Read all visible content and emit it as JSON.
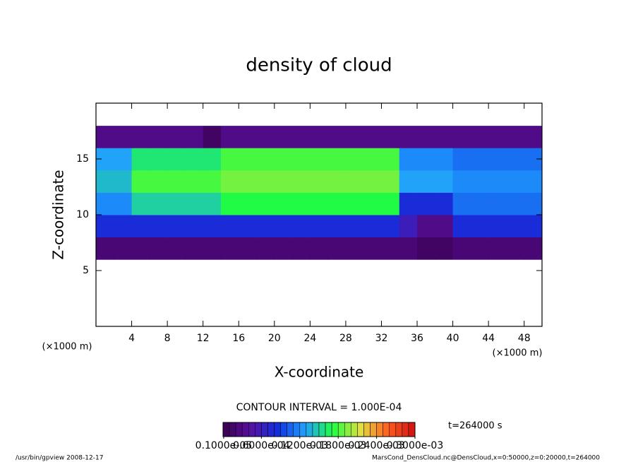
{
  "chart_data": {
    "type": "heatmap",
    "title": "density of cloud",
    "x_label": "X-coordinate",
    "y_label": "Z-coordinate",
    "x_unit": "(×1000 m)",
    "contour_interval": "CONTOUR INTERVAL = 1.000E-04",
    "time_label": "t=264000 s",
    "footer_left": "/usr/bin/gpview   2008-12-17",
    "footer_right": "MarsCond_DensCloud.nc@DensCloud,x=0:50000,z=0:20000,t=264000",
    "x": [
      1,
      3,
      5,
      7,
      9,
      11,
      13,
      15,
      17,
      19,
      21,
      23,
      25,
      27,
      29,
      31,
      33,
      35,
      37,
      39,
      41,
      43,
      45,
      47,
      49
    ],
    "y": [
      1,
      3,
      5,
      7,
      9,
      11,
      13,
      15,
      17,
      19
    ],
    "xlim": [
      0,
      50
    ],
    "ylim": [
      0,
      20
    ],
    "xticks": [
      4,
      8,
      12,
      16,
      20,
      24,
      28,
      32,
      36,
      40,
      44,
      48
    ],
    "yticks": [
      5,
      10,
      15
    ],
    "clim": [
      0,
      0.0003
    ],
    "colormap": [
      "#3a0050",
      "#5a10a0",
      "#1030e0",
      "#20a0ff",
      "#20ff40",
      "#e0e040",
      "#ff6020",
      "#d01010"
    ],
    "colorbar_ticks": [
      {
        "value": 1e-06,
        "label": "0.1000e-05"
      },
      {
        "value": 6e-05,
        "label": "0.6000e-04"
      },
      {
        "value": 0.00012,
        "label": "0.1200e-03"
      },
      {
        "value": 0.00018,
        "label": "0.1800e-03"
      },
      {
        "value": 0.00024,
        "label": "0.2400e-03"
      },
      {
        "value": 0.0003,
        "label": "0.3000e-03"
      }
    ],
    "values": [
      [
        0,
        0,
        0,
        0,
        0,
        0,
        0,
        0,
        0,
        0,
        0,
        0,
        0,
        0,
        0,
        0,
        0,
        0,
        0,
        0,
        0,
        0,
        0,
        0,
        0
      ],
      [
        0,
        0,
        0,
        0,
        0,
        0,
        0,
        0,
        0,
        0,
        0,
        0,
        0,
        0,
        0,
        0,
        0,
        0,
        0,
        0,
        0,
        0,
        0,
        0,
        0
      ],
      [
        0,
        0,
        0,
        0,
        0,
        0,
        0,
        0,
        0,
        0,
        0,
        0,
        0,
        0,
        0,
        0,
        0,
        0,
        0,
        0,
        0,
        0,
        0,
        0,
        0
      ],
      [
        2e-05,
        2e-05,
        2e-05,
        2e-05,
        2e-05,
        2e-05,
        2e-05,
        2e-05,
        2e-05,
        2e-05,
        2e-05,
        2e-05,
        2e-05,
        2e-05,
        2e-05,
        2e-05,
        2e-05,
        2e-05,
        1e-05,
        1e-05,
        2e-05,
        2e-05,
        2e-05,
        2e-05,
        2e-05
      ],
      [
        8e-05,
        8e-05,
        8e-05,
        8e-05,
        8e-05,
        8e-05,
        8e-05,
        8e-05,
        8e-05,
        8e-05,
        8e-05,
        8e-05,
        8e-05,
        8e-05,
        8e-05,
        8e-05,
        8e-05,
        6e-05,
        3e-05,
        3e-05,
        8e-05,
        8e-05,
        8e-05,
        8e-05,
        8e-05
      ],
      [
        0.00012,
        0.00012,
        0.00015,
        0.00015,
        0.00015,
        0.00015,
        0.00015,
        0.00017,
        0.00017,
        0.00017,
        0.00017,
        0.00017,
        0.00017,
        0.00017,
        0.00017,
        0.00017,
        0.00017,
        8e-05,
        8e-05,
        8e-05,
        0.00011,
        0.00011,
        0.00011,
        0.00011,
        0.00011
      ],
      [
        0.00014,
        0.00014,
        0.00018,
        0.00018,
        0.00018,
        0.00018,
        0.00018,
        0.00019,
        0.00019,
        0.00019,
        0.00019,
        0.00019,
        0.00019,
        0.00019,
        0.00019,
        0.00019,
        0.00019,
        0.00013,
        0.00013,
        0.00013,
        0.00012,
        0.00012,
        0.00012,
        0.00012,
        0.00012
      ],
      [
        0.00013,
        0.00013,
        0.00016,
        0.00016,
        0.00016,
        0.00016,
        0.00016,
        0.00018,
        0.00018,
        0.00018,
        0.00018,
        0.00018,
        0.00018,
        0.00018,
        0.00018,
        0.00018,
        0.00018,
        0.00012,
        0.00012,
        0.00012,
        0.00011,
        0.00011,
        0.00011,
        0.00011,
        0.00011
      ],
      [
        3e-05,
        3e-05,
        3e-05,
        3e-05,
        3e-05,
        3e-05,
        1e-05,
        3e-05,
        3e-05,
        3e-05,
        3e-05,
        3e-05,
        3e-05,
        3e-05,
        3e-05,
        3e-05,
        3e-05,
        3e-05,
        3e-05,
        3e-05,
        3e-05,
        3e-05,
        3e-05,
        3e-05,
        3e-05
      ],
      [
        0,
        0,
        0,
        0,
        0,
        0,
        0,
        0,
        0,
        0,
        0,
        0,
        0,
        0,
        0,
        0,
        0,
        0,
        0,
        0,
        0,
        0,
        0,
        0,
        0
      ]
    ]
  }
}
